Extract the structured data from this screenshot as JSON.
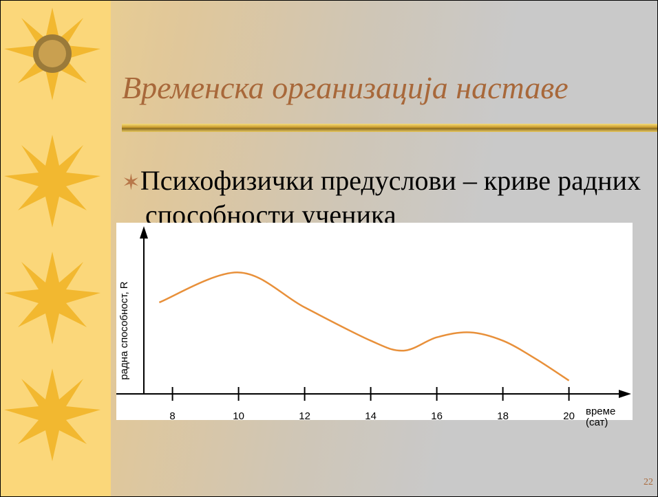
{
  "slide": {
    "title": "Временска организација наставе",
    "bullet": "Психофизички предуслови – криве радних способности ученика",
    "number": "22"
  },
  "chart_data": {
    "type": "line",
    "ylabel": "радна способност, R",
    "xlabel": [
      "време",
      "(сат)"
    ],
    "x": [
      7.6,
      10,
      12,
      14,
      15,
      16,
      17,
      18,
      19,
      20
    ],
    "series": [
      {
        "name": "R",
        "color": "#e8903a",
        "values": [
          5.5,
          7.3,
          5.2,
          3.2,
          2.6,
          3.4,
          3.7,
          3.2,
          2.1,
          0.8
        ]
      }
    ],
    "xlim": [
      6.3,
      21.8
    ],
    "xticks": [
      8,
      10,
      12,
      14,
      16,
      18,
      20
    ],
    "ylim": [
      0,
      10
    ]
  }
}
